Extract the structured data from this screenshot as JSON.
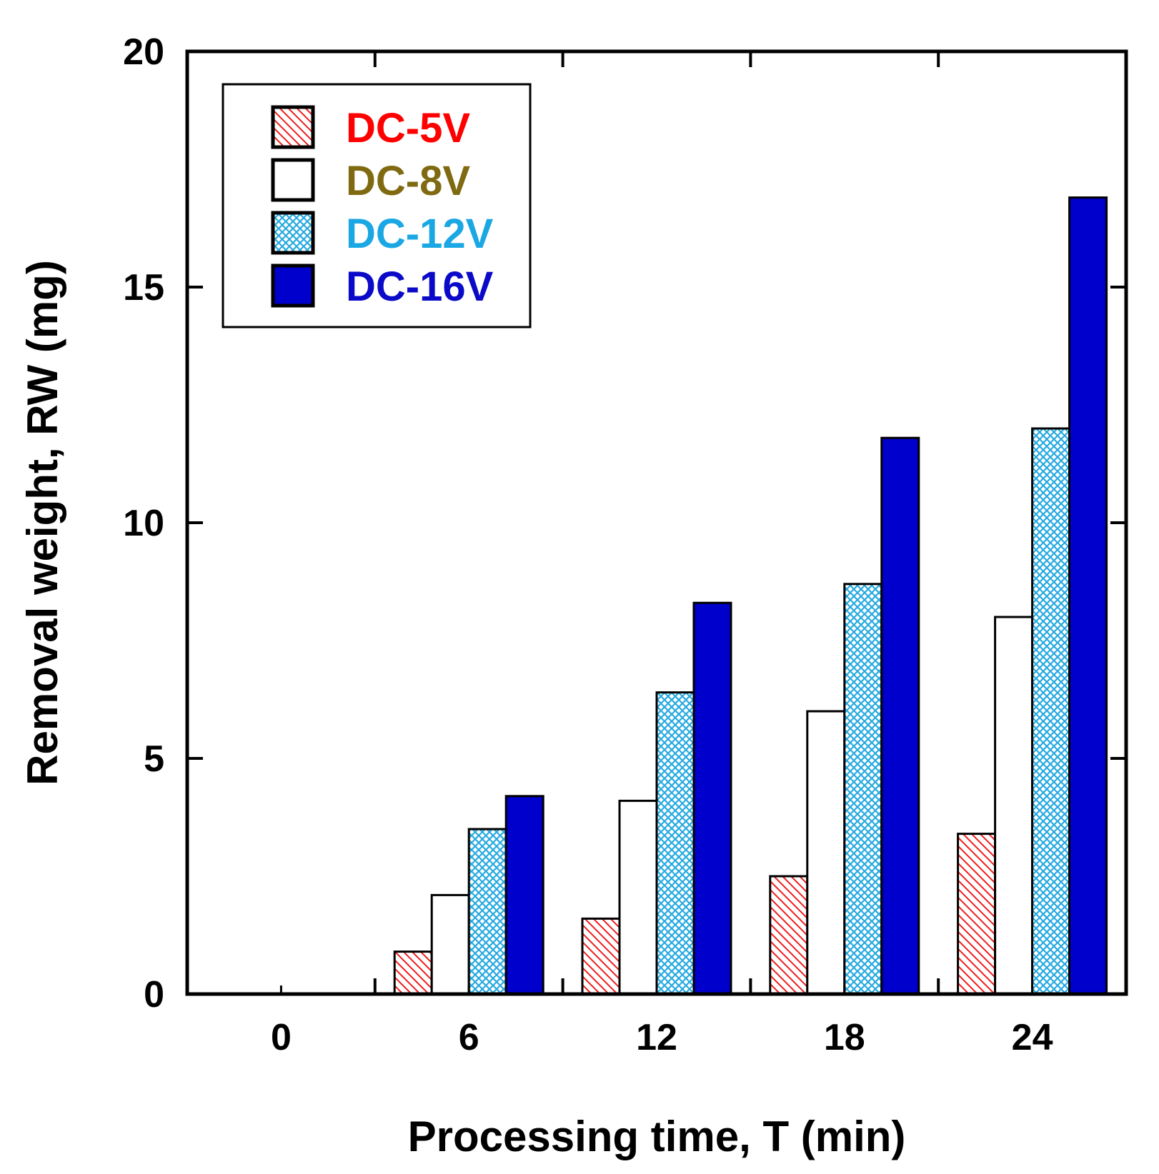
{
  "chart_data": {
    "type": "bar",
    "title": "",
    "xlabel": "Processing time, T (min)",
    "ylabel": "Removal weight, RW (mg)",
    "categories": [
      "0",
      "6",
      "12",
      "18",
      "24"
    ],
    "ylim": [
      0,
      20
    ],
    "yticks": [
      "0",
      "5",
      "10",
      "15",
      "20"
    ],
    "grid": false,
    "legend_position": "top-left",
    "series": [
      {
        "name": "DC-5V",
        "values": [
          0,
          0.9,
          1.6,
          2.5,
          3.4
        ],
        "fill": "diagonal-hatch",
        "color": "#ee1c1c",
        "label_color": "#ff0000"
      },
      {
        "name": "DC-8V",
        "values": [
          0,
          2.1,
          4.1,
          6.0,
          8.0
        ],
        "fill": "none",
        "color": "#ffffff",
        "label_color": "#7f6a12"
      },
      {
        "name": "DC-12V",
        "values": [
          0,
          3.5,
          6.4,
          8.7,
          12.0
        ],
        "fill": "crosshatch",
        "color": "#26a9e0",
        "label_color": "#1aa7e3"
      },
      {
        "name": "DC-16V",
        "values": [
          0,
          4.2,
          8.3,
          11.8,
          16.9
        ],
        "fill": "solid",
        "color": "#0000cc",
        "label_color": "#0a0ac8"
      }
    ]
  }
}
